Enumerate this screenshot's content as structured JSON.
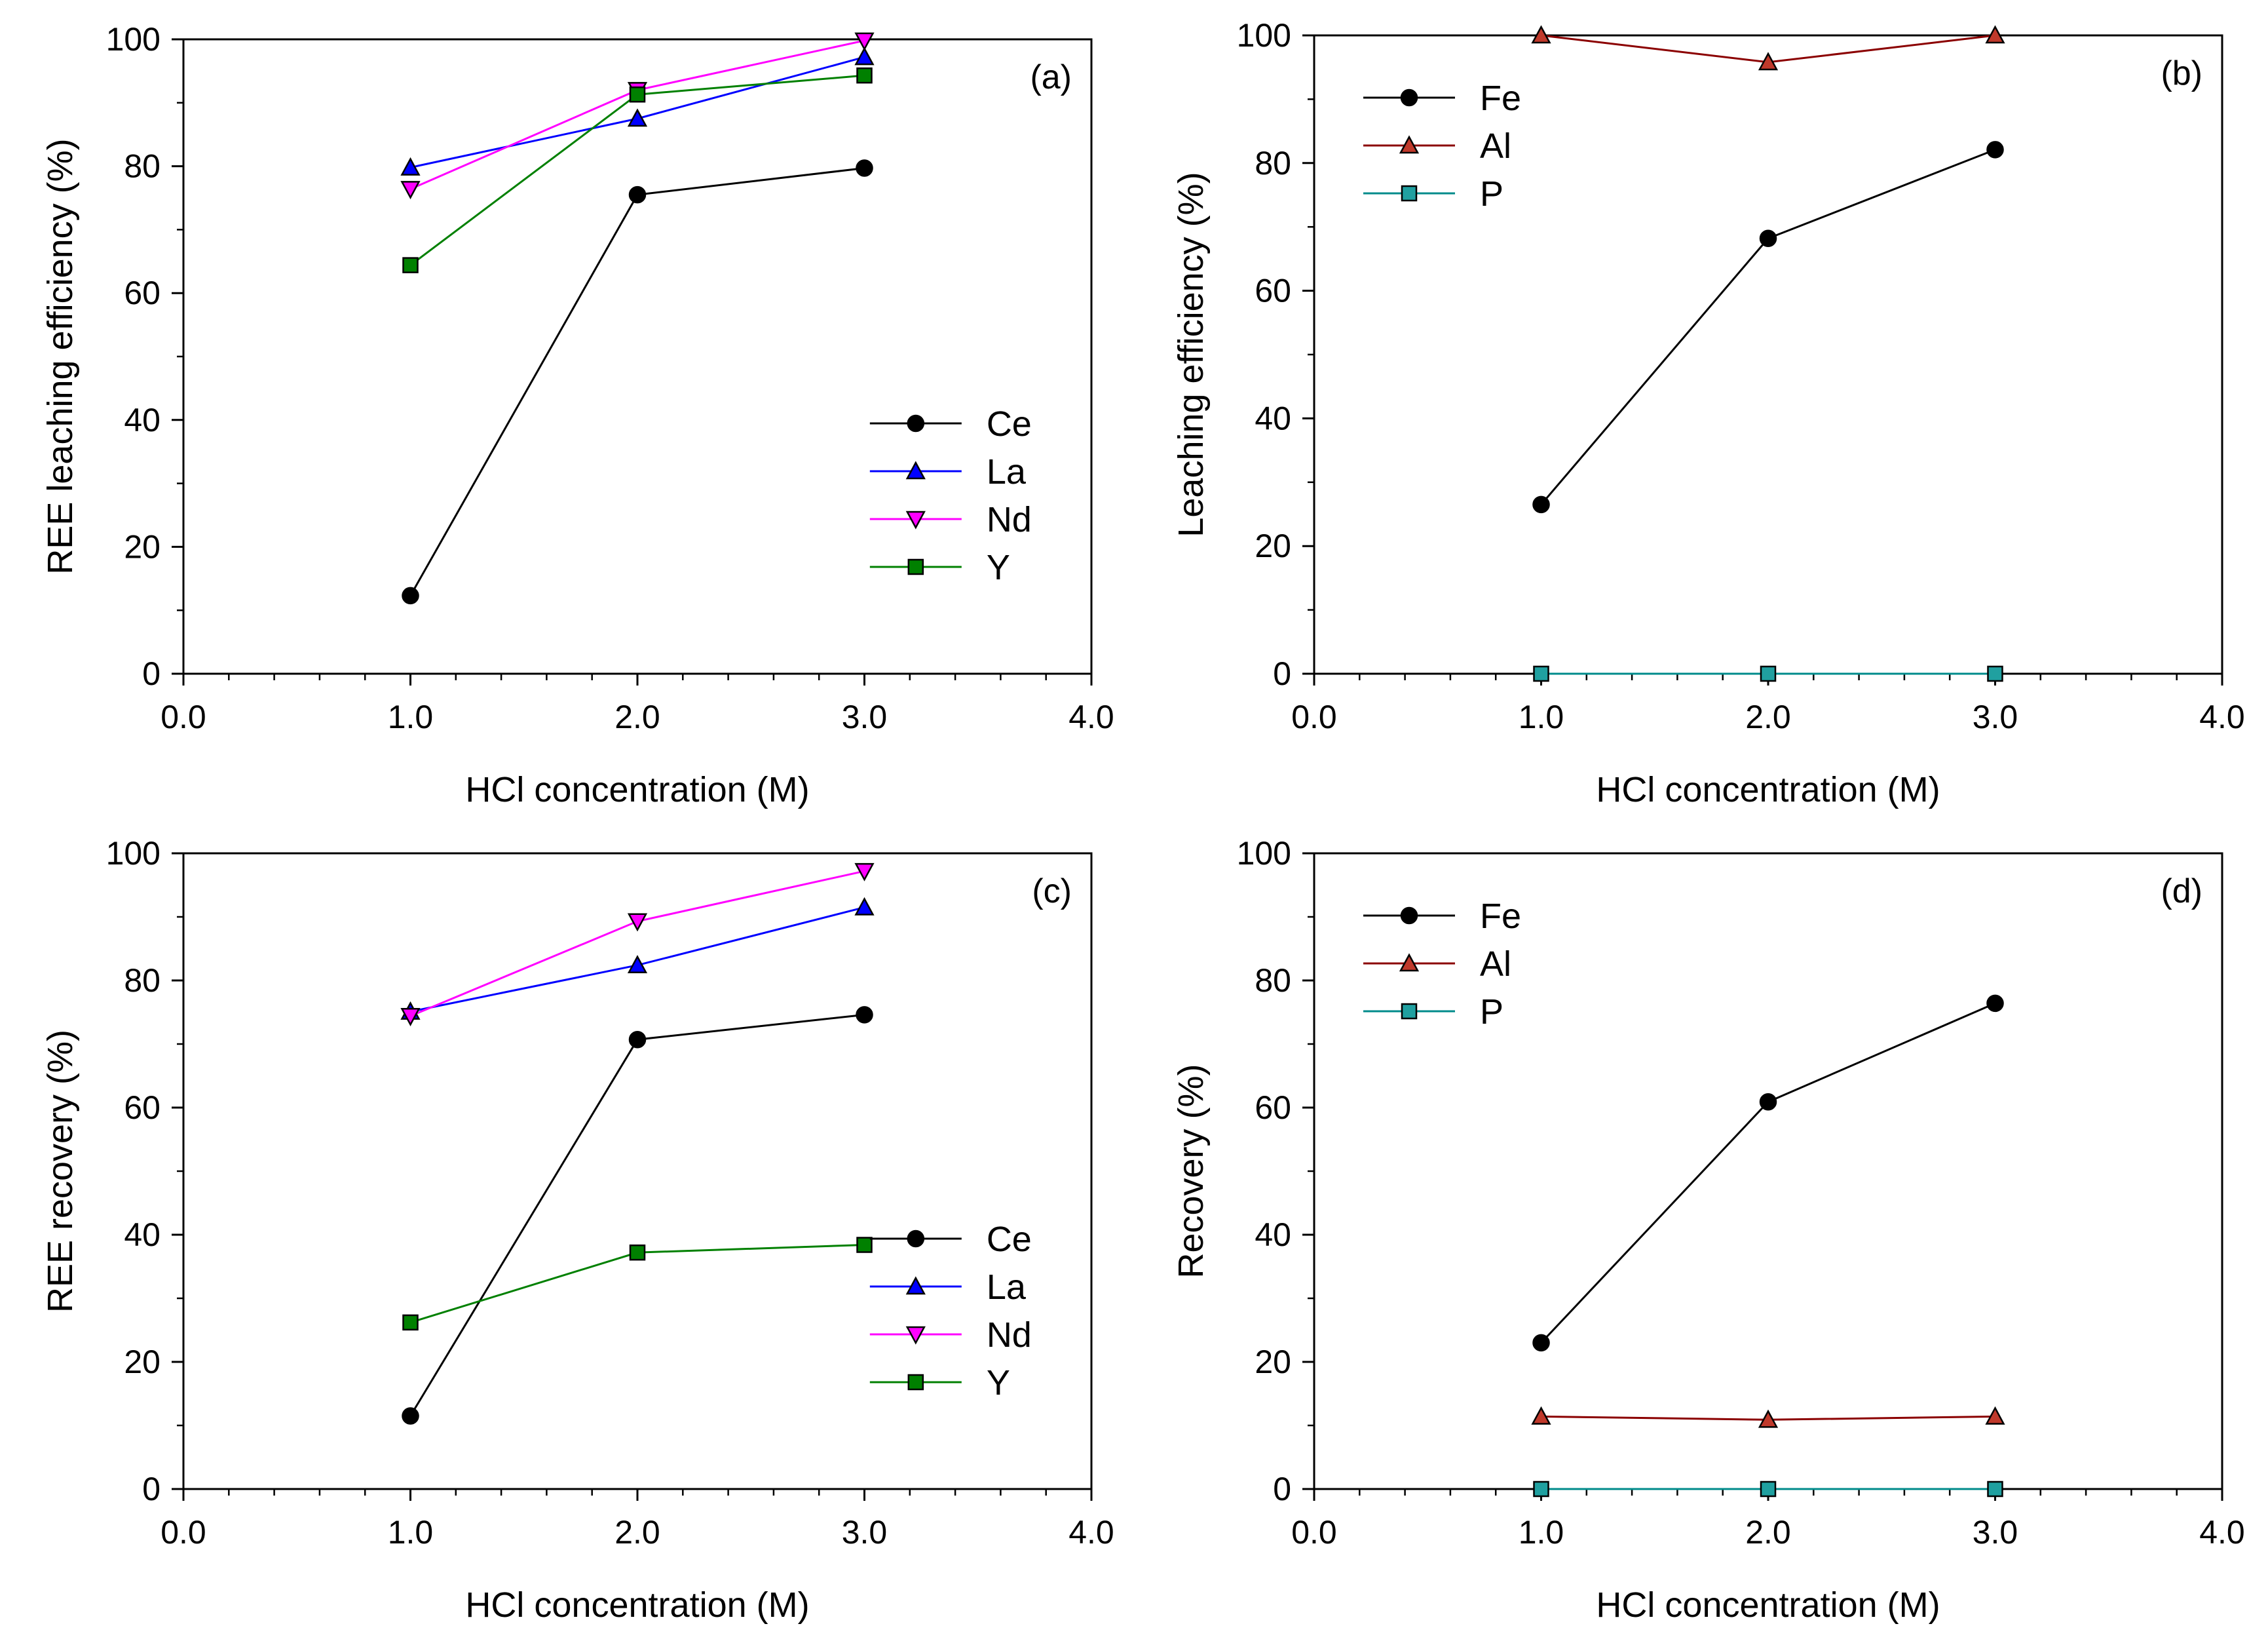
{
  "figure": {
    "background": "#ffffff"
  },
  "chart_data": [
    {
      "type": "line",
      "panel_label": "(a)",
      "xlabel": "HCl concentration (M)",
      "ylabel": "REE leaching efficiency (%)",
      "xlim": [
        0,
        4
      ],
      "ylim": [
        0,
        100
      ],
      "xticks": [
        "0.0",
        "1.0",
        "2.0",
        "3.0",
        "4.0"
      ],
      "yticks": [
        "0",
        "20",
        "40",
        "60",
        "80",
        "100"
      ],
      "legend_position": "bottom-right",
      "x": [
        1,
        2,
        3
      ],
      "series": [
        {
          "name": "Ce",
          "marker": "circle",
          "color": "#000000",
          "fill": "#000000",
          "values": [
            12.3,
            75.5,
            79.7
          ]
        },
        {
          "name": "La",
          "marker": "triangle-up",
          "color": "#0000ff",
          "fill": "#0000ff",
          "values": [
            79.8,
            87.5,
            97.2
          ]
        },
        {
          "name": "Nd",
          "marker": "triangle-down",
          "color": "#ff00ff",
          "fill": "#ff00ff",
          "values": [
            76.4,
            92.0,
            99.8
          ]
        },
        {
          "name": "Y",
          "marker": "square",
          "color": "#008000",
          "fill": "#008000",
          "values": [
            64.4,
            91.3,
            94.3
          ]
        }
      ]
    },
    {
      "type": "line",
      "panel_label": "(b)",
      "xlabel": "HCl concentration (M)",
      "ylabel": "Leaching efficiency (%)",
      "xlim": [
        0,
        4
      ],
      "ylim": [
        0,
        100
      ],
      "xticks": [
        "0.0",
        "1.0",
        "2.0",
        "3.0",
        "4.0"
      ],
      "yticks": [
        "0",
        "20",
        "40",
        "60",
        "80",
        "100"
      ],
      "legend_position": "top-left",
      "x": [
        1,
        2,
        3
      ],
      "series": [
        {
          "name": "Fe",
          "marker": "circle",
          "color": "#000000",
          "fill": "#000000",
          "values": [
            26.5,
            68.2,
            82.1
          ]
        },
        {
          "name": "Al",
          "marker": "triangle-up",
          "color": "#8b0000",
          "fill": "#c0392b",
          "values": [
            100.0,
            95.8,
            100.0
          ]
        },
        {
          "name": "P",
          "marker": "square",
          "color": "#008b8b",
          "fill": "#20a0a0",
          "values": [
            0.0,
            0.0,
            0.0
          ]
        }
      ]
    },
    {
      "type": "line",
      "panel_label": "(c)",
      "xlabel": "HCl concentration (M)",
      "ylabel": "REE recovery (%)",
      "xlim": [
        0,
        4
      ],
      "ylim": [
        0,
        100
      ],
      "xticks": [
        "0.0",
        "1.0",
        "2.0",
        "3.0",
        "4.0"
      ],
      "yticks": [
        "0",
        "20",
        "40",
        "60",
        "80",
        "100"
      ],
      "legend_position": "bottom-right",
      "x": [
        1,
        2,
        3
      ],
      "series": [
        {
          "name": "Ce",
          "marker": "circle",
          "color": "#000000",
          "fill": "#000000",
          "values": [
            11.5,
            70.7,
            74.6
          ]
        },
        {
          "name": "La",
          "marker": "triangle-up",
          "color": "#0000ff",
          "fill": "#0000ff",
          "values": [
            75.1,
            82.4,
            91.5
          ]
        },
        {
          "name": "Nd",
          "marker": "triangle-down",
          "color": "#ff00ff",
          "fill": "#ff00ff",
          "values": [
            74.4,
            89.3,
            97.2
          ]
        },
        {
          "name": "Y",
          "marker": "square",
          "color": "#008000",
          "fill": "#008000",
          "values": [
            26.2,
            37.2,
            38.4
          ]
        }
      ]
    },
    {
      "type": "line",
      "panel_label": "(d)",
      "xlabel": "HCl concentration (M)",
      "ylabel": "Recovery (%)",
      "xlim": [
        0,
        4
      ],
      "ylim": [
        0,
        100
      ],
      "xticks": [
        "0.0",
        "1.0",
        "2.0",
        "3.0",
        "4.0"
      ],
      "yticks": [
        "0",
        "20",
        "40",
        "60",
        "80",
        "100"
      ],
      "legend_position": "top-left",
      "x": [
        1,
        2,
        3
      ],
      "series": [
        {
          "name": "Fe",
          "marker": "circle",
          "color": "#000000",
          "fill": "#000000",
          "values": [
            23.0,
            60.9,
            76.4
          ]
        },
        {
          "name": "Al",
          "marker": "triangle-up",
          "color": "#8b0000",
          "fill": "#c0392b",
          "values": [
            11.4,
            10.9,
            11.4
          ]
        },
        {
          "name": "P",
          "marker": "square",
          "color": "#008b8b",
          "fill": "#20a0a0",
          "values": [
            0.0,
            0.0,
            0.0
          ]
        }
      ]
    }
  ]
}
